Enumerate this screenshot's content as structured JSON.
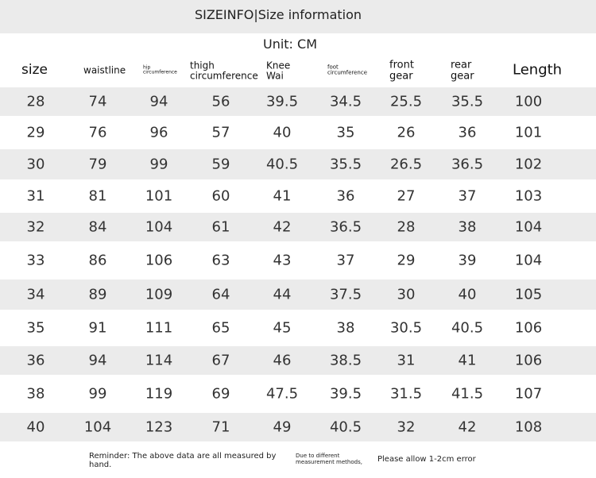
{
  "header": {
    "title": "SIZEINFO|Size information",
    "unit": "Unit: CM"
  },
  "table": {
    "columns": [
      "size",
      "waistline",
      "hip circumference",
      "thigh circumference",
      "Knee Wai",
      "foot circumference",
      "front gear",
      "rear gear",
      "Length"
    ],
    "rows": [
      [
        28,
        74,
        94,
        56,
        39.5,
        34.5,
        25.5,
        35.5,
        100
      ],
      [
        29,
        76,
        96,
        57,
        40,
        35,
        26,
        36,
        101
      ],
      [
        30,
        79,
        99,
        59,
        40.5,
        35.5,
        26.5,
        36.5,
        102
      ],
      [
        31,
        81,
        101,
        60,
        41,
        36,
        27,
        37,
        103
      ],
      [
        32,
        84,
        104,
        61,
        42,
        36.5,
        28,
        38,
        104
      ],
      [
        33,
        86,
        106,
        63,
        43,
        37,
        29,
        39,
        104
      ],
      [
        34,
        89,
        109,
        64,
        44,
        37.5,
        30,
        40,
        105
      ],
      [
        35,
        91,
        111,
        65,
        45,
        38,
        30.5,
        40.5,
        106
      ],
      [
        36,
        94,
        114,
        67,
        46,
        38.5,
        31,
        41,
        106
      ],
      [
        38,
        99,
        119,
        69,
        47.5,
        39.5,
        31.5,
        41.5,
        107
      ],
      [
        40,
        104,
        123,
        71,
        49,
        40.5,
        32,
        42,
        108
      ]
    ]
  },
  "footer": {
    "reminder": "Reminder: The above data are all measured by hand.",
    "methods": "Due to different measurement methods,",
    "error": "Please allow 1-2cm error"
  }
}
